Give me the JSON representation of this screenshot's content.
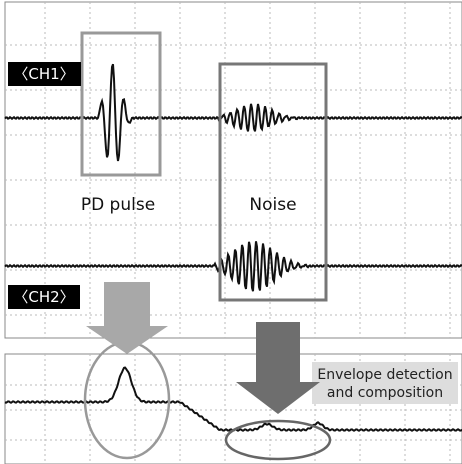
{
  "labels": {
    "ch1": "〈CH1〉",
    "ch2": "〈CH2〉",
    "pd_pulse": "PD pulse",
    "noise": "Noise",
    "envelope": [
      "Envelope detection",
      "and composition"
    ]
  }
}
